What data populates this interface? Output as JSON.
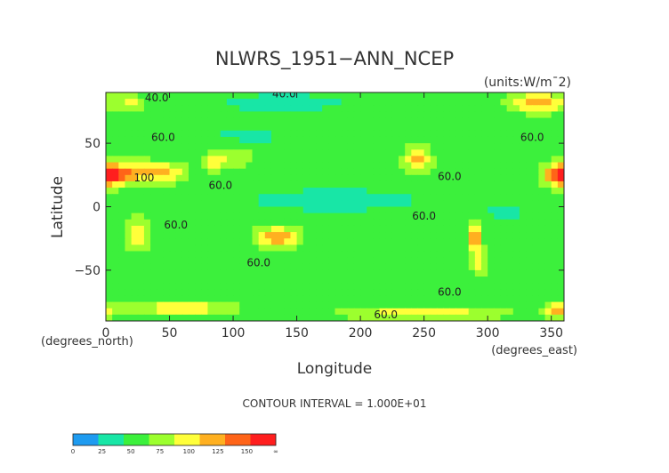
{
  "chart_data": {
    "type": "heatmap",
    "title": "NLWRS_1951−ANN_NCEP",
    "units_label": "(units:W/m¯2)",
    "xlabel": "Longitude",
    "ylabel": "Latitude",
    "x_unit_label": "(degrees_east)",
    "y_unit_label": "(degrees_north)",
    "xlim": [
      0,
      360
    ],
    "ylim": [
      -90,
      90
    ],
    "x_ticks": [
      "0",
      "50",
      "100",
      "150",
      "200",
      "250",
      "300",
      "350"
    ],
    "x_tick_values": [
      0,
      50,
      100,
      150,
      200,
      250,
      300,
      350
    ],
    "y_ticks": [
      "50",
      "0",
      "−50"
    ],
    "y_tick_values": [
      50,
      0,
      -50
    ],
    "contour_interval_text": "CONTOUR INTERVAL = 1.000E+01",
    "contour_labels": [
      {
        "text": "40.0",
        "lon": 40,
        "lat": 83
      },
      {
        "text": "40.0",
        "lon": 140,
        "lat": 86
      },
      {
        "text": "60.0",
        "lon": 45,
        "lat": 52
      },
      {
        "text": "100",
        "lon": 30,
        "lat": 20
      },
      {
        "text": "60.0",
        "lon": 90,
        "lat": 14
      },
      {
        "text": "60.0",
        "lon": 270,
        "lat": 21
      },
      {
        "text": "60.0",
        "lon": 335,
        "lat": 52
      },
      {
        "text": "60.0",
        "lon": 55,
        "lat": -17
      },
      {
        "text": "60.0",
        "lon": 250,
        "lat": -10
      },
      {
        "text": "60.0",
        "lon": 120,
        "lat": -47
      },
      {
        "text": "60.0",
        "lon": 270,
        "lat": -70
      },
      {
        "text": "60.0",
        "lon": 220,
        "lat": -88
      }
    ],
    "colorbar": {
      "ticks": [
        "0",
        "25",
        "50",
        "75",
        "100",
        "125",
        "150",
        "∞"
      ],
      "bins": [
        {
          "from": 0,
          "to": 25,
          "color": "#1e9bf0"
        },
        {
          "from": 25,
          "to": 50,
          "color": "#18e6a6"
        },
        {
          "from": 50,
          "to": 75,
          "color": "#3cf03c"
        },
        {
          "from": 75,
          "to": 100,
          "color": "#9cff2e"
        },
        {
          "from": 100,
          "to": 125,
          "color": "#ffff3a"
        },
        {
          "from": 125,
          "to": 150,
          "color": "#ffb020"
        },
        {
          "from": 150,
          "to": 175,
          "color": "#ff6418"
        },
        {
          "from": 175,
          "to": "inf",
          "color": "#ff1e1e"
        }
      ]
    },
    "field": {
      "background_value": 62,
      "features": [
        {
          "lon": 0,
          "lat": 25,
          "value": 140,
          "rlon": 14,
          "rlat": 8
        },
        {
          "lon": 25,
          "lat": 27,
          "value": 140,
          "rlon": 15,
          "rlat": 8
        },
        {
          "lon": 50,
          "lat": 27,
          "value": 120,
          "rlon": 14,
          "rlat": 8
        },
        {
          "lon": 85,
          "lat": 36,
          "value": 125,
          "rlon": 9,
          "rlat": 7
        },
        {
          "lon": 105,
          "lat": 40,
          "value": 95,
          "rlon": 12,
          "rlat": 10
        },
        {
          "lon": 245,
          "lat": 37,
          "value": 140,
          "rlon": 10,
          "rlat": 11
        },
        {
          "lon": 360,
          "lat": 25,
          "value": 140,
          "rlon": 14,
          "rlat": 9
        },
        {
          "lon": 25,
          "lat": -22,
          "value": 130,
          "rlon": 9,
          "rlat": 12
        },
        {
          "lon": 135,
          "lat": -24,
          "value": 150,
          "rlon": 16,
          "rlat": 8
        },
        {
          "lon": 290,
          "lat": -25,
          "value": 150,
          "rlon": 5,
          "rlat": 14
        },
        {
          "lon": 295,
          "lat": -45,
          "value": 105,
          "rlon": 6,
          "rlat": 10
        },
        {
          "lon": 340,
          "lat": 82,
          "value": 135,
          "rlon": 22,
          "rlat": 8
        },
        {
          "lon": 20,
          "lat": 82,
          "value": 110,
          "rlon": 10,
          "rlat": 6
        },
        {
          "lon": 180,
          "lat": 5,
          "value": 38,
          "rlon": 75,
          "rlat": 10
        },
        {
          "lon": 110,
          "lat": 55,
          "value": 42,
          "rlon": 30,
          "rlat": 10
        },
        {
          "lon": 140,
          "lat": 82,
          "value": 40,
          "rlon": 60,
          "rlat": 8
        },
        {
          "lon": 315,
          "lat": -5,
          "value": 42,
          "rlon": 18,
          "rlat": 8
        },
        {
          "lon": 60,
          "lat": -80,
          "value": 120,
          "rlon": 40,
          "rlat": 6
        },
        {
          "lon": 250,
          "lat": -84,
          "value": 120,
          "rlon": 60,
          "rlat": 5
        },
        {
          "lon": 355,
          "lat": -82,
          "value": 130,
          "rlon": 10,
          "rlat": 6
        }
      ]
    }
  }
}
